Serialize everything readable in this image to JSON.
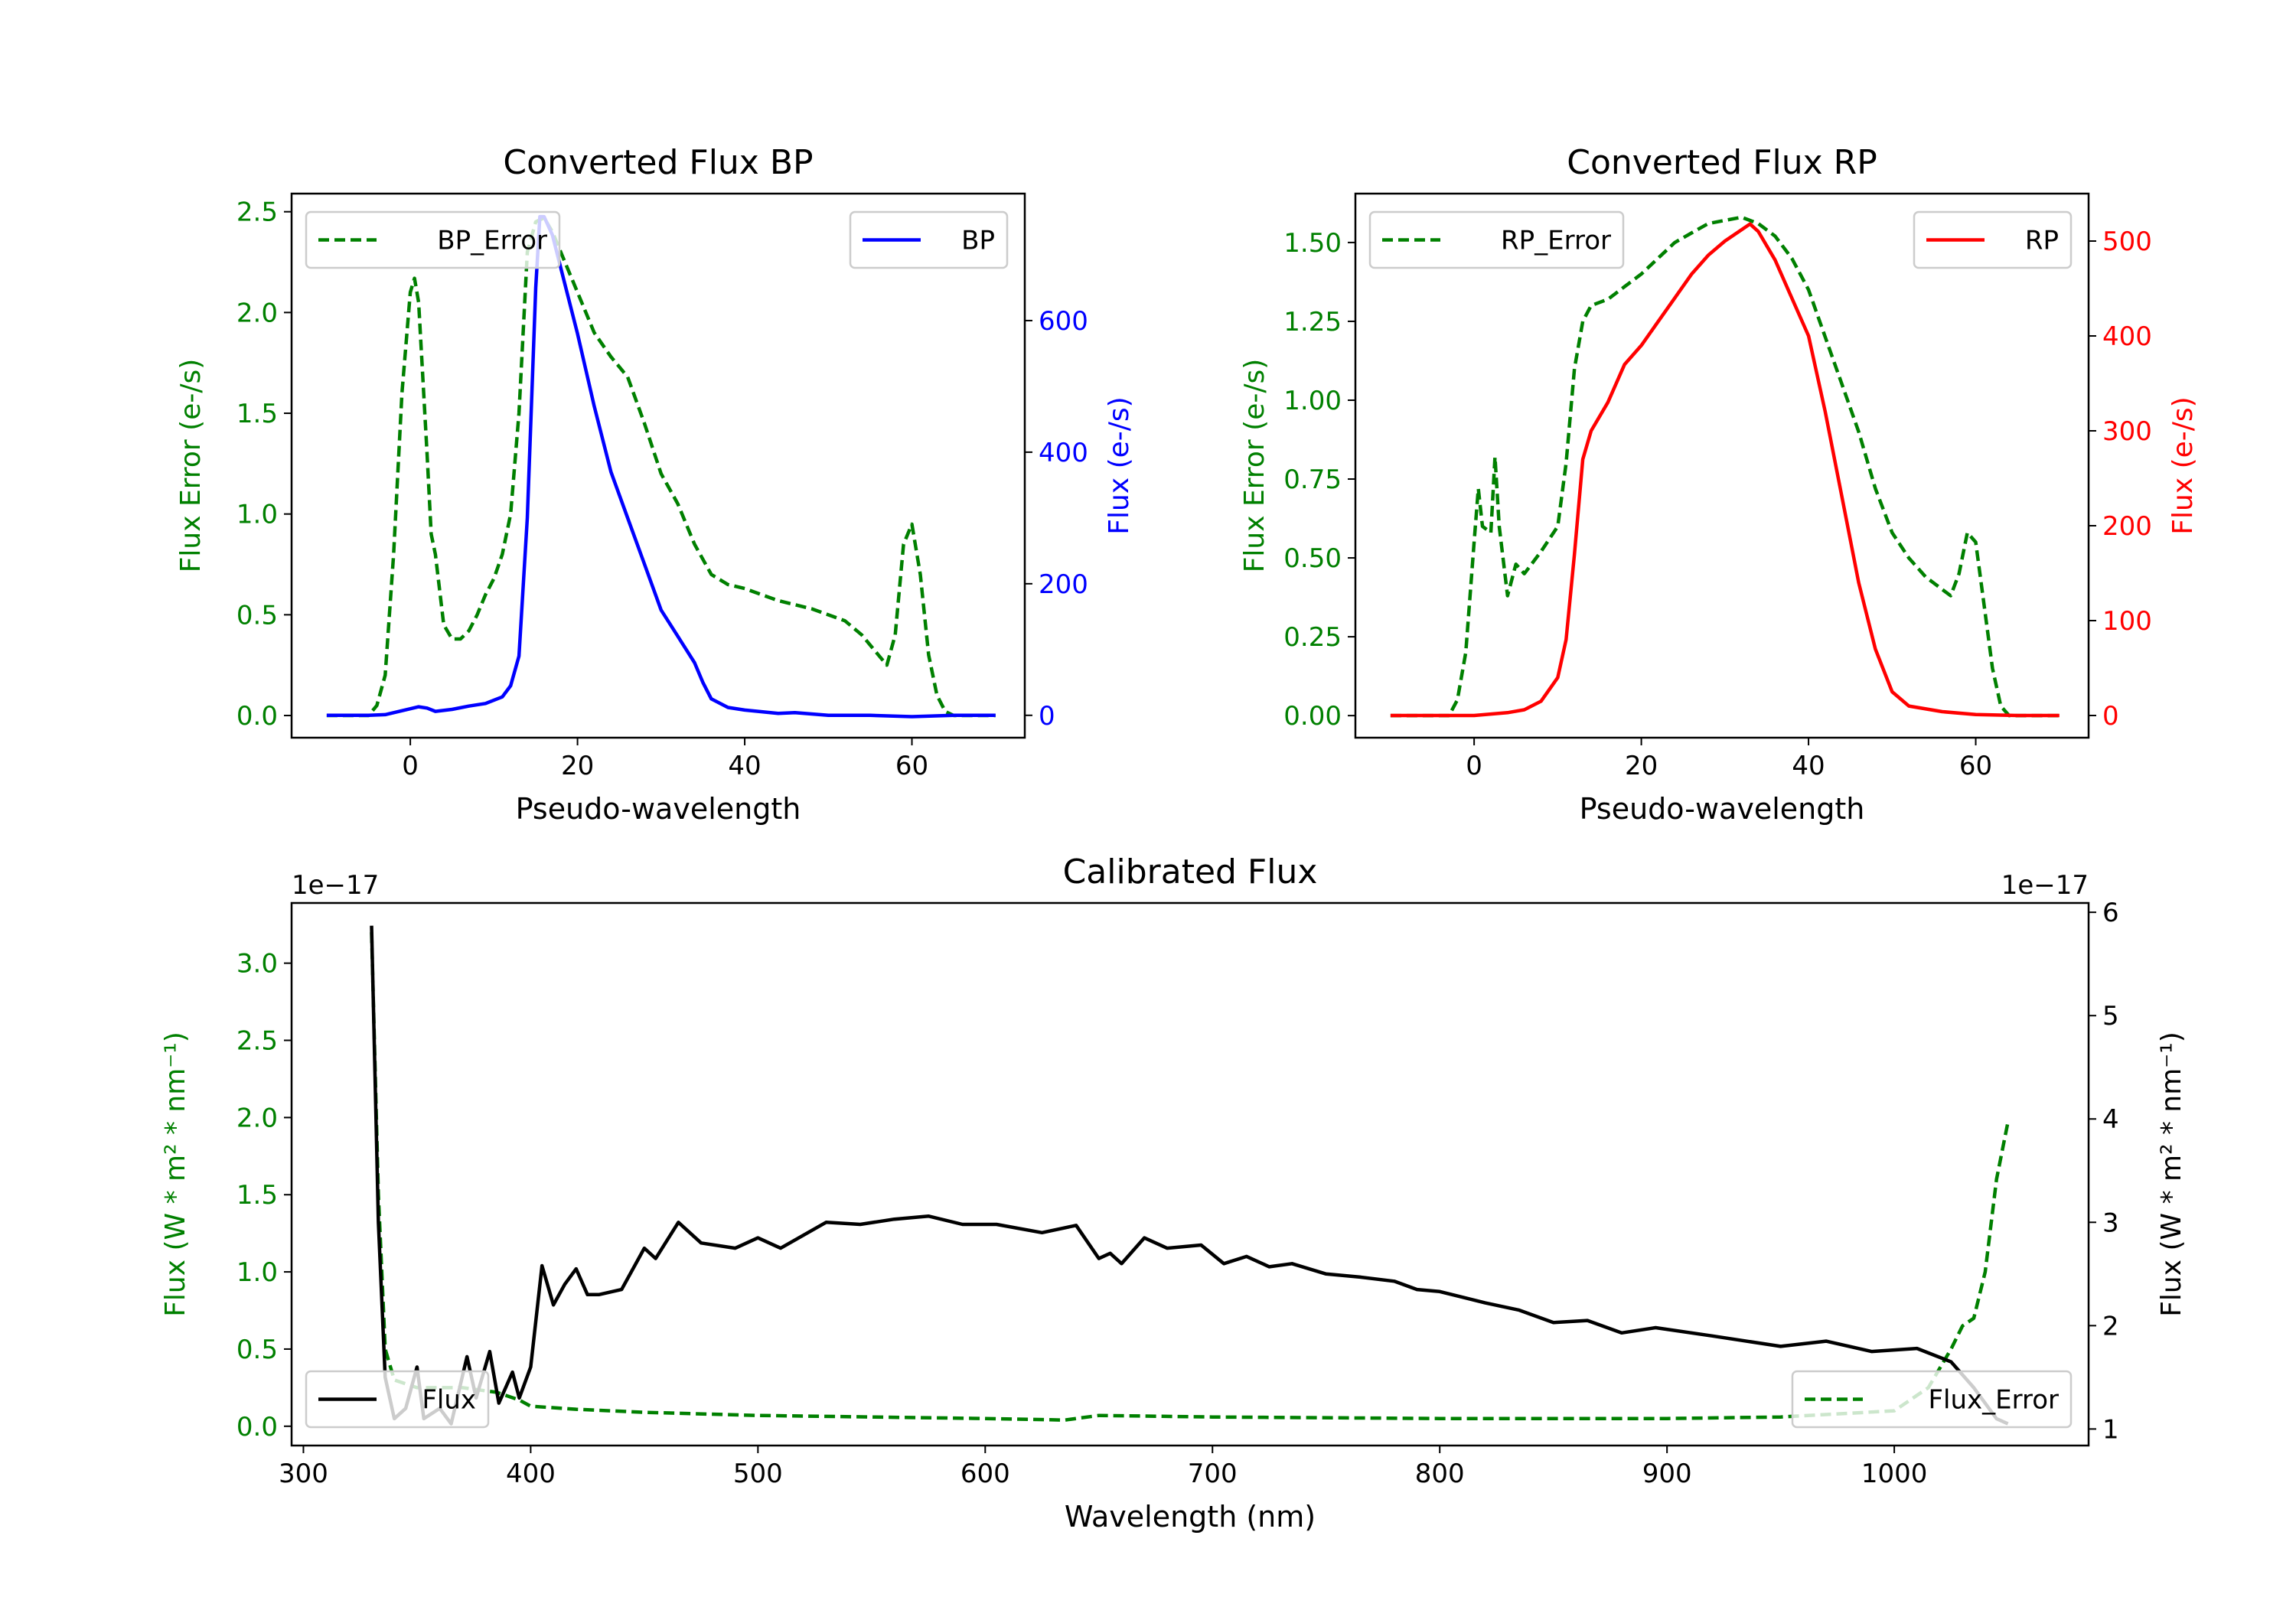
{
  "chart_data": [
    {
      "type": "line",
      "title": "Converted Flux BP",
      "xlabel": "Pseudo-wavelength",
      "ylabel": "Flux Error (e-/s)",
      "ylabel_right": "Flux (e-/s)",
      "xlim": [
        -14.2,
        73.5
      ],
      "ylim": [
        -0.11,
        2.59
      ],
      "ylim_right": [
        -34,
        793
      ],
      "xticks": [
        0,
        20,
        40,
        60
      ],
      "xtick_labels": [
        "0",
        "20",
        "40",
        "60"
      ],
      "yticks": [
        0,
        0.5,
        1,
        1.5,
        2,
        2.5
      ],
      "ytick_labels": [
        "0.0",
        "0.5",
        "1.0",
        "1.5",
        "2.0",
        "2.5"
      ],
      "yticks_right": [
        0,
        200,
        400,
        600
      ],
      "ytick_labels_right": [
        "0",
        "200",
        "400",
        "600"
      ],
      "left_color": "#008000",
      "right_color": "#0000ff",
      "series": [
        {
          "name": "BP_Error",
          "axis": "left",
          "style": "dashed",
          "color": "#008000",
          "legend": "upper-left",
          "x": [
            -10,
            -5,
            -4,
            -3,
            -2,
            -1,
            0,
            0.5,
            1,
            2,
            2.5,
            3,
            4,
            5,
            6,
            7,
            8,
            9,
            10,
            11,
            12,
            13,
            14,
            15,
            16,
            17,
            18,
            20,
            22,
            24,
            26,
            28,
            30,
            32,
            34,
            36,
            38,
            40,
            44,
            48,
            52,
            54,
            56,
            57,
            58,
            59,
            60,
            61,
            62,
            63,
            64,
            65,
            70
          ],
          "y": [
            0,
            0,
            0.05,
            0.2,
            0.8,
            1.6,
            2.1,
            2.17,
            2.05,
            1.3,
            0.9,
            0.8,
            0.45,
            0.38,
            0.38,
            0.42,
            0.5,
            0.6,
            0.68,
            0.8,
            1.0,
            1.5,
            2.3,
            2.45,
            2.47,
            2.4,
            2.3,
            2.1,
            1.9,
            1.78,
            1.68,
            1.45,
            1.2,
            1.05,
            0.85,
            0.7,
            0.65,
            0.63,
            0.57,
            0.53,
            0.47,
            0.4,
            0.3,
            0.25,
            0.4,
            0.85,
            0.95,
            0.7,
            0.3,
            0.1,
            0.02,
            0,
            0
          ]
        },
        {
          "name": "BP",
          "axis": "right",
          "style": "solid",
          "color": "#0000ff",
          "legend": "upper-right",
          "x": [
            -10,
            -5,
            -3,
            0,
            1,
            2,
            3,
            5,
            7,
            9,
            11,
            12,
            13,
            14,
            15,
            15.5,
            16,
            17,
            18,
            20,
            22,
            24,
            26,
            28,
            30,
            32,
            34,
            35,
            36,
            38,
            40,
            44,
            46,
            50,
            55,
            60,
            65,
            70
          ],
          "y": [
            0,
            0,
            1,
            10,
            13,
            11,
            6,
            9,
            14,
            18,
            28,
            45,
            90,
            300,
            650,
            758,
            758,
            730,
            680,
            580,
            470,
            370,
            300,
            230,
            160,
            120,
            80,
            50,
            25,
            12,
            8,
            3,
            4,
            0,
            0,
            -2,
            0,
            0
          ]
        }
      ]
    },
    {
      "type": "line",
      "title": "Converted Flux RP",
      "xlabel": "Pseudo-wavelength",
      "ylabel": "Flux Error (e-/s)",
      "ylabel_right": "Flux (e-/s)",
      "xlim": [
        -14.2,
        73.5
      ],
      "ylim": [
        -0.07,
        1.655
      ],
      "ylim_right": [
        -23.4,
        550
      ],
      "xticks": [
        0,
        20,
        40,
        60
      ],
      "xtick_labels": [
        "0",
        "20",
        "40",
        "60"
      ],
      "yticks": [
        0,
        0.25,
        0.5,
        0.75,
        1,
        1.25,
        1.5
      ],
      "ytick_labels": [
        "0.00",
        "0.25",
        "0.50",
        "0.75",
        "1.00",
        "1.25",
        "1.50"
      ],
      "yticks_right": [
        0,
        100,
        200,
        300,
        400,
        500
      ],
      "ytick_labels_right": [
        "0",
        "100",
        "200",
        "300",
        "400",
        "500"
      ],
      "left_color": "#008000",
      "right_color": "#ff0000",
      "series": [
        {
          "name": "RP_Error",
          "axis": "left",
          "style": "dashed",
          "color": "#008000",
          "legend": "upper-left",
          "x": [
            -10,
            -3,
            -2,
            -1,
            0,
            0.5,
            1,
            2,
            2.5,
            3,
            4,
            5,
            6,
            8,
            10,
            11,
            12,
            13,
            14,
            16,
            18,
            20,
            22,
            24,
            26,
            28,
            30,
            32,
            34,
            36,
            38,
            40,
            42,
            44,
            46,
            48,
            50,
            52,
            54,
            56,
            57,
            58,
            59,
            60,
            61,
            62,
            63,
            64,
            70
          ],
          "y": [
            0,
            0,
            0.05,
            0.2,
            0.55,
            0.72,
            0.6,
            0.58,
            0.82,
            0.6,
            0.38,
            0.48,
            0.45,
            0.52,
            0.6,
            0.8,
            1.1,
            1.25,
            1.3,
            1.32,
            1.36,
            1.4,
            1.45,
            1.5,
            1.53,
            1.56,
            1.57,
            1.58,
            1.56,
            1.52,
            1.45,
            1.35,
            1.2,
            1.05,
            0.9,
            0.72,
            0.58,
            0.5,
            0.44,
            0.4,
            0.38,
            0.45,
            0.58,
            0.55,
            0.35,
            0.15,
            0.03,
            0,
            0
          ]
        },
        {
          "name": "RP",
          "axis": "right",
          "style": "solid",
          "color": "#ff0000",
          "legend": "upper-right",
          "x": [
            -10,
            0,
            4,
            6,
            8,
            10,
            11,
            12,
            13,
            14,
            16,
            18,
            20,
            22,
            24,
            26,
            28,
            30,
            32,
            33,
            34,
            36,
            38,
            40,
            42,
            44,
            46,
            48,
            50,
            52,
            56,
            60,
            65,
            70
          ],
          "y": [
            0,
            0,
            3,
            6,
            15,
            40,
            80,
            170,
            270,
            300,
            330,
            370,
            390,
            415,
            440,
            465,
            485,
            500,
            512,
            518,
            510,
            480,
            440,
            400,
            320,
            230,
            140,
            70,
            25,
            10,
            4,
            1,
            0,
            0
          ]
        }
      ]
    },
    {
      "type": "line",
      "title": "Calibrated Flux",
      "xlabel": "Wavelength (nm)",
      "ylabel": "Flux (W * m² * nm⁻¹)",
      "ylabel_right": "Flux (W * m² * nm⁻¹)",
      "offset_label": "1e−17",
      "offset_label_right": "1e−17",
      "xlim": [
        294.8,
        1085.5
      ],
      "ylim": [
        -0.125,
        3.39
      ],
      "ylim_right": [
        0.84,
        6.09
      ],
      "xticks": [
        300,
        400,
        500,
        600,
        700,
        800,
        900,
        1000
      ],
      "xtick_labels": [
        "300",
        "400",
        "500",
        "600",
        "700",
        "800",
        "900",
        "1000"
      ],
      "yticks": [
        0,
        0.5,
        1,
        1.5,
        2,
        2.5,
        3
      ],
      "ytick_labels": [
        "0.0",
        "0.5",
        "1.0",
        "1.5",
        "2.0",
        "2.5",
        "3.0"
      ],
      "yticks_right": [
        1,
        2,
        3,
        4,
        5,
        6
      ],
      "ytick_labels_right": [
        "1",
        "2",
        "3",
        "4",
        "5",
        "6"
      ],
      "left_color": "#008000",
      "right_color": "#000000",
      "series": [
        {
          "name": "Flux_Error",
          "axis": "left",
          "style": "dashed",
          "color": "#008000",
          "legend": "lower-right",
          "x": [
            330,
            333,
            336,
            340,
            350,
            370,
            385,
            395,
            400,
            420,
            450,
            500,
            550,
            600,
            635,
            650,
            700,
            800,
            900,
            950,
            1000,
            1015,
            1025,
            1030,
            1035,
            1040,
            1045,
            1050
          ],
          "y": [
            3.2,
            1.5,
            0.5,
            0.3,
            0.25,
            0.25,
            0.22,
            0.17,
            0.13,
            0.11,
            0.09,
            0.07,
            0.06,
            0.05,
            0.04,
            0.07,
            0.06,
            0.05,
            0.05,
            0.06,
            0.1,
            0.25,
            0.5,
            0.65,
            0.7,
            1.0,
            1.6,
            1.97
          ]
        },
        {
          "name": "Flux",
          "axis": "right",
          "style": "solid",
          "color": "#000000",
          "legend": "lower-left",
          "x": [
            330,
            333,
            336,
            340,
            345,
            350,
            353,
            360,
            365,
            372,
            376,
            382,
            386,
            392,
            395,
            400,
            405,
            410,
            415,
            420,
            425,
            430,
            440,
            450,
            455,
            465,
            475,
            490,
            500,
            510,
            530,
            545,
            560,
            575,
            590,
            605,
            625,
            640,
            650,
            655,
            660,
            670,
            680,
            695,
            705,
            715,
            725,
            735,
            750,
            765,
            780,
            790,
            800,
            820,
            835,
            850,
            865,
            880,
            895,
            920,
            950,
            970,
            990,
            1010,
            1025,
            1035,
            1045,
            1050
          ],
          "y": [
            5.87,
            3,
            1.5,
            1.1,
            1.2,
            1.6,
            1.1,
            1.2,
            1.05,
            1.7,
            1.3,
            1.75,
            1.25,
            1.55,
            1.3,
            1.6,
            2.58,
            2.2,
            2.4,
            2.55,
            2.3,
            2.3,
            2.35,
            2.75,
            2.65,
            3.0,
            2.8,
            2.75,
            2.85,
            2.75,
            3.0,
            2.98,
            3.03,
            3.06,
            2.98,
            2.98,
            2.9,
            2.97,
            2.65,
            2.7,
            2.6,
            2.85,
            2.75,
            2.78,
            2.6,
            2.67,
            2.57,
            2.6,
            2.5,
            2.47,
            2.43,
            2.35,
            2.33,
            2.22,
            2.15,
            2.03,
            2.05,
            1.93,
            1.98,
            1.9,
            1.8,
            1.85,
            1.75,
            1.78,
            1.65,
            1.4,
            1.1,
            1.05
          ]
        }
      ]
    }
  ]
}
